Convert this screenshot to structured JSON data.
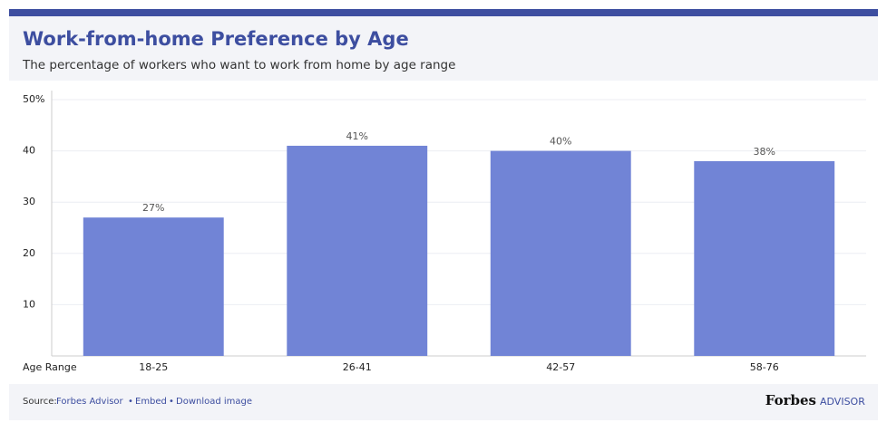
{
  "chart_data": {
    "type": "bar",
    "title": "Work-from-home Preference by Age",
    "subtitle": "The percentage of workers who want to work from home by age range",
    "x_label": "Age Range",
    "categories": [
      "18-25",
      "26-41",
      "42-57",
      "58-76"
    ],
    "values": [
      27,
      41,
      40,
      38
    ],
    "value_labels": [
      "27%",
      "41%",
      "40%",
      "38%"
    ],
    "color": "#7184d6",
    "ylim": [
      0,
      50
    ],
    "yticks": [
      10,
      20,
      30,
      40,
      {
        "value": 50,
        "label": "50%"
      }
    ],
    "grid": true
  },
  "footer": {
    "source_label": "Source:",
    "links": [
      "Forbes Advisor",
      "Embed",
      "Download image"
    ],
    "brand": "Forbes",
    "brand_suffix": "ADVISOR"
  }
}
